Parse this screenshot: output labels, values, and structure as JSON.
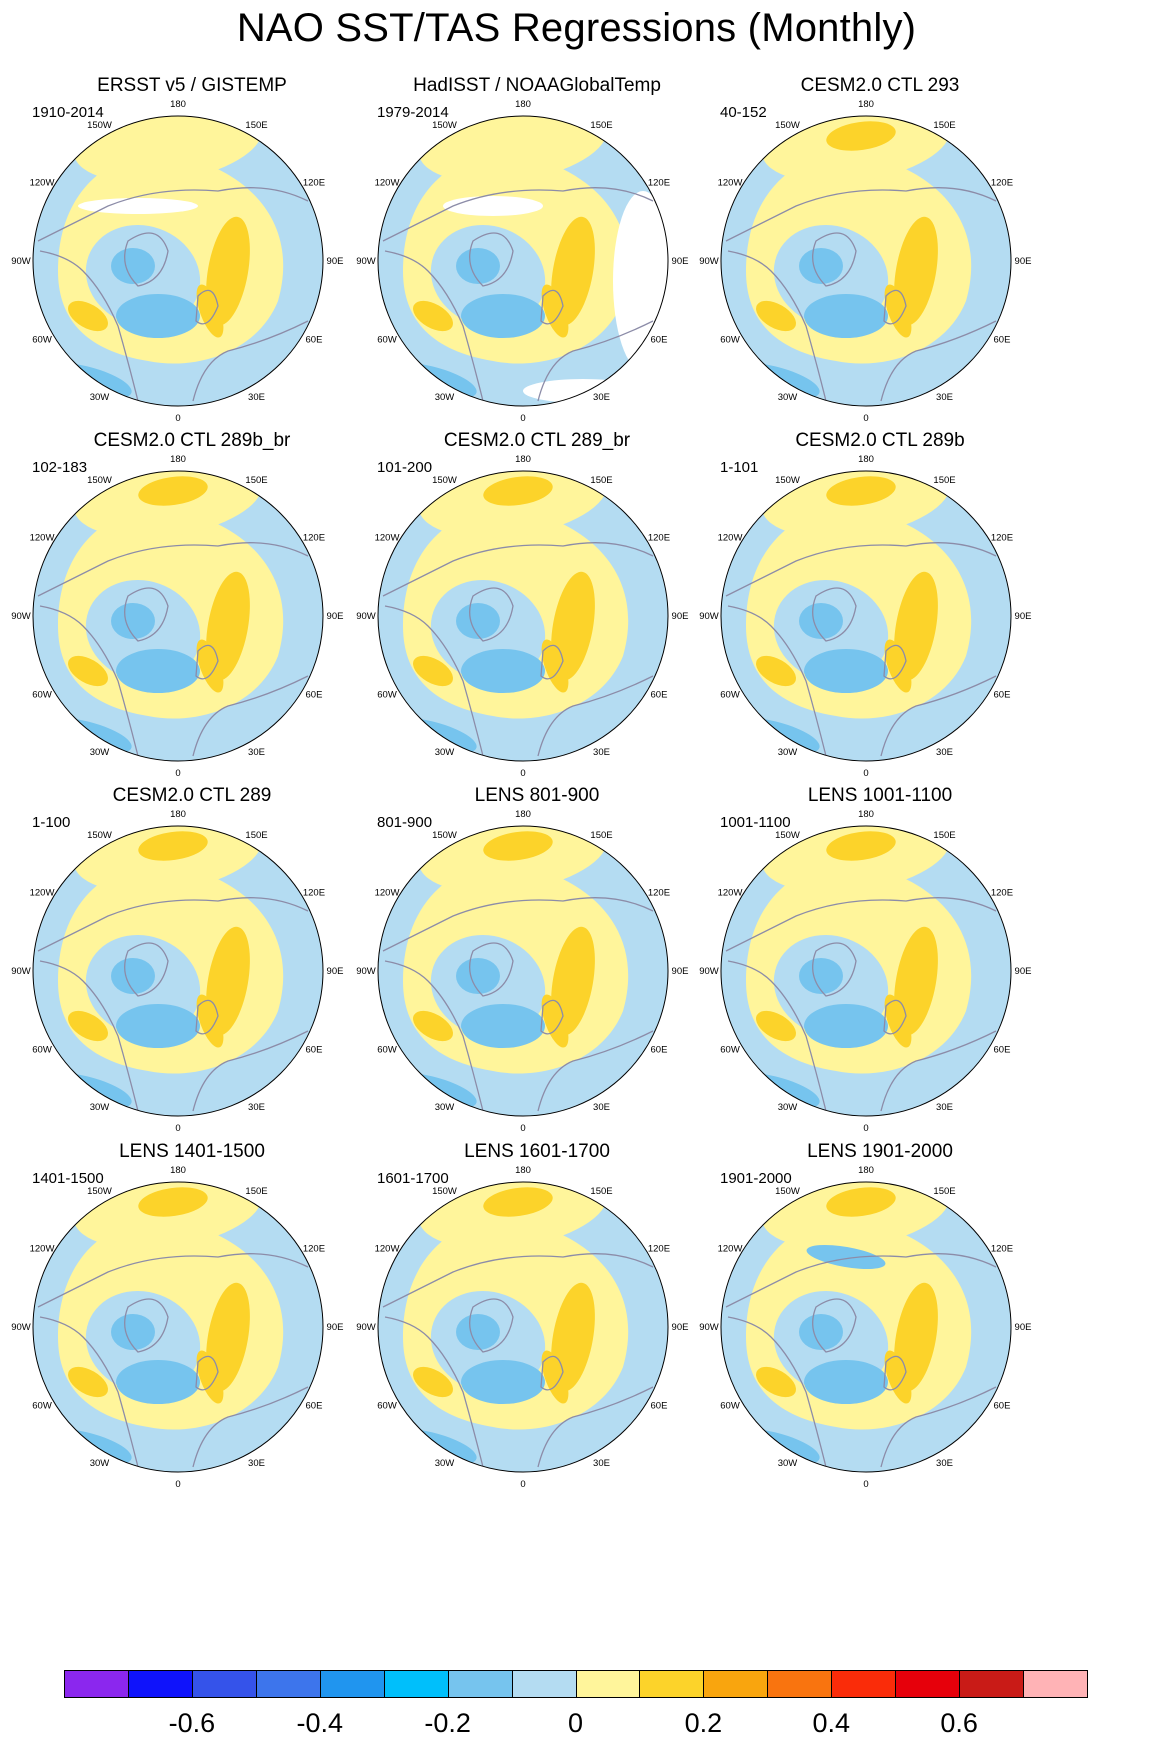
{
  "title": "NAO SST/TAS Regressions (Monthly)",
  "panels": [
    {
      "title": "ERSST v5 / GISTEMP",
      "period": "1910-2014",
      "variant": "obs1"
    },
    {
      "title": "HadISST / NOAAGlobalTemp",
      "period": "1979-2014",
      "variant": "obs2"
    },
    {
      "title": "CESM2.0 CTL 293",
      "period": "40-152",
      "variant": "model"
    },
    {
      "title": "CESM2.0 CTL 289b_br",
      "period": "102-183",
      "variant": "model"
    },
    {
      "title": "CESM2.0 CTL 289_br",
      "period": "101-200",
      "variant": "model"
    },
    {
      "title": "CESM2.0 CTL 289b",
      "period": "1-101",
      "variant": "model"
    },
    {
      "title": "CESM2.0 CTL 289",
      "period": "1-100",
      "variant": "model"
    },
    {
      "title": "LENS 801-900",
      "period": "801-900",
      "variant": "model"
    },
    {
      "title": "LENS 1001-1100",
      "period": "1001-1100",
      "variant": "model"
    },
    {
      "title": "LENS 1401-1500",
      "period": "1401-1500",
      "variant": "model"
    },
    {
      "title": "LENS 1601-1700",
      "period": "1601-1700",
      "variant": "model"
    },
    {
      "title": "LENS 1901-2000",
      "period": "1901-2000",
      "variant": "model2"
    }
  ],
  "longitude_labels": {
    "top": "180",
    "top_left": "150W",
    "top_right": "150E",
    "upper_left": "120W",
    "upper_right": "120E",
    "left": "90W",
    "right": "90E",
    "lower_left": "60W",
    "lower_right": "60E",
    "bottom_left": "30W",
    "bottom_right": "30E",
    "bottom": "0"
  },
  "colors": {
    "neg_light": "#b4dcf2",
    "neg_mid": "#76c4ee",
    "neg_strong": "#3aaeea",
    "pos_light": "#fff59b",
    "pos_mid": "#fcd32a",
    "pos_strong": "#f9a50e",
    "coast": "#8c8ca8",
    "missing": "#ffffff"
  },
  "colorbar": {
    "colors": [
      "#8b27ee",
      "#0f13fb",
      "#3553ea",
      "#3d75ec",
      "#2095ef",
      "#00bffb",
      "#76c4ee",
      "#b4dcf2",
      "#fff59b",
      "#fcd32a",
      "#f9a50e",
      "#f9740f",
      "#fa2c09",
      "#e6000b",
      "#c91b17",
      "#ffb3b6"
    ],
    "labels": [
      {
        "text": "-0.6",
        "value": -0.6
      },
      {
        "text": "-0.4",
        "value": -0.4
      },
      {
        "text": "-0.2",
        "value": -0.2
      },
      {
        "text": "0",
        "value": 0
      },
      {
        "text": "0.2",
        "value": 0.2
      },
      {
        "text": "0.4",
        "value": 0.4
      },
      {
        "text": "0.6",
        "value": 0.6
      }
    ],
    "min": -0.8,
    "max": 0.8
  }
}
